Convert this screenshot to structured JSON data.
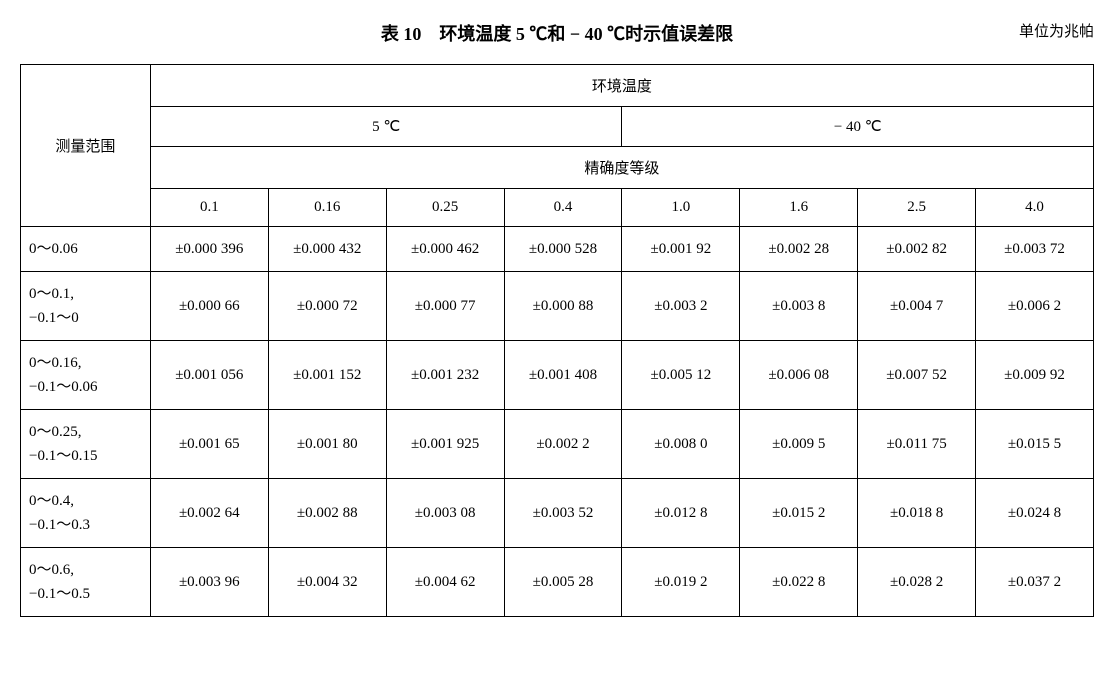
{
  "title": "表 10　环境温度 5 ℃和 − 40 ℃时示值误差限",
  "unit": "单位为兆帕",
  "headers": {
    "range": "测量范围",
    "env_temp": "环境温度",
    "temp_5c": "5 ℃",
    "temp_m40c": "− 40 ℃",
    "accuracy": "精确度等级",
    "acc_cols": [
      "0.1",
      "0.16",
      "0.25",
      "0.4",
      "1.0",
      "1.6",
      "2.5",
      "4.0"
    ]
  },
  "rows": [
    {
      "range": "0～0.06",
      "v": [
        "±0.000 396",
        "±0.000 432",
        "±0.000 462",
        "±0.000 528",
        "±0.001 92",
        "±0.002 28",
        "±0.002 82",
        "±0.003 72"
      ]
    },
    {
      "range": "0～0.1,\n−0.1～0",
      "v": [
        "±0.000 66",
        "±0.000 72",
        "±0.000 77",
        "±0.000 88",
        "±0.003 2",
        "±0.003 8",
        "±0.004 7",
        "±0.006 2"
      ]
    },
    {
      "range": "0～0.16,\n−0.1～0.06",
      "v": [
        "±0.001 056",
        "±0.001 152",
        "±0.001 232",
        "±0.001 408",
        "±0.005 12",
        "±0.006 08",
        "±0.007 52",
        "±0.009 92"
      ]
    },
    {
      "range": "0～0.25,\n−0.1～0.15",
      "v": [
        "±0.001 65",
        "±0.001 80",
        "±0.001 925",
        "±0.002 2",
        "±0.008 0",
        "±0.009 5",
        "±0.011 75",
        "±0.015 5"
      ]
    },
    {
      "range": "0～0.4,\n−0.1～0.3",
      "v": [
        "±0.002 64",
        "±0.002 88",
        "±0.003 08",
        "±0.003 52",
        "±0.012 8",
        "±0.015 2",
        "±0.018 8",
        "±0.024 8"
      ]
    },
    {
      "range": "0～0.6,\n−0.1～0.5",
      "v": [
        "±0.003 96",
        "±0.004 32",
        "±0.004 62",
        "±0.005 28",
        "±0.019 2",
        "±0.022 8",
        "±0.028 2",
        "±0.037 2"
      ]
    }
  ],
  "styling": {
    "border_color": "#000000",
    "background_color": "#ffffff",
    "title_fontsize": 18,
    "body_fontsize": 15,
    "font_family": "SimSun"
  }
}
